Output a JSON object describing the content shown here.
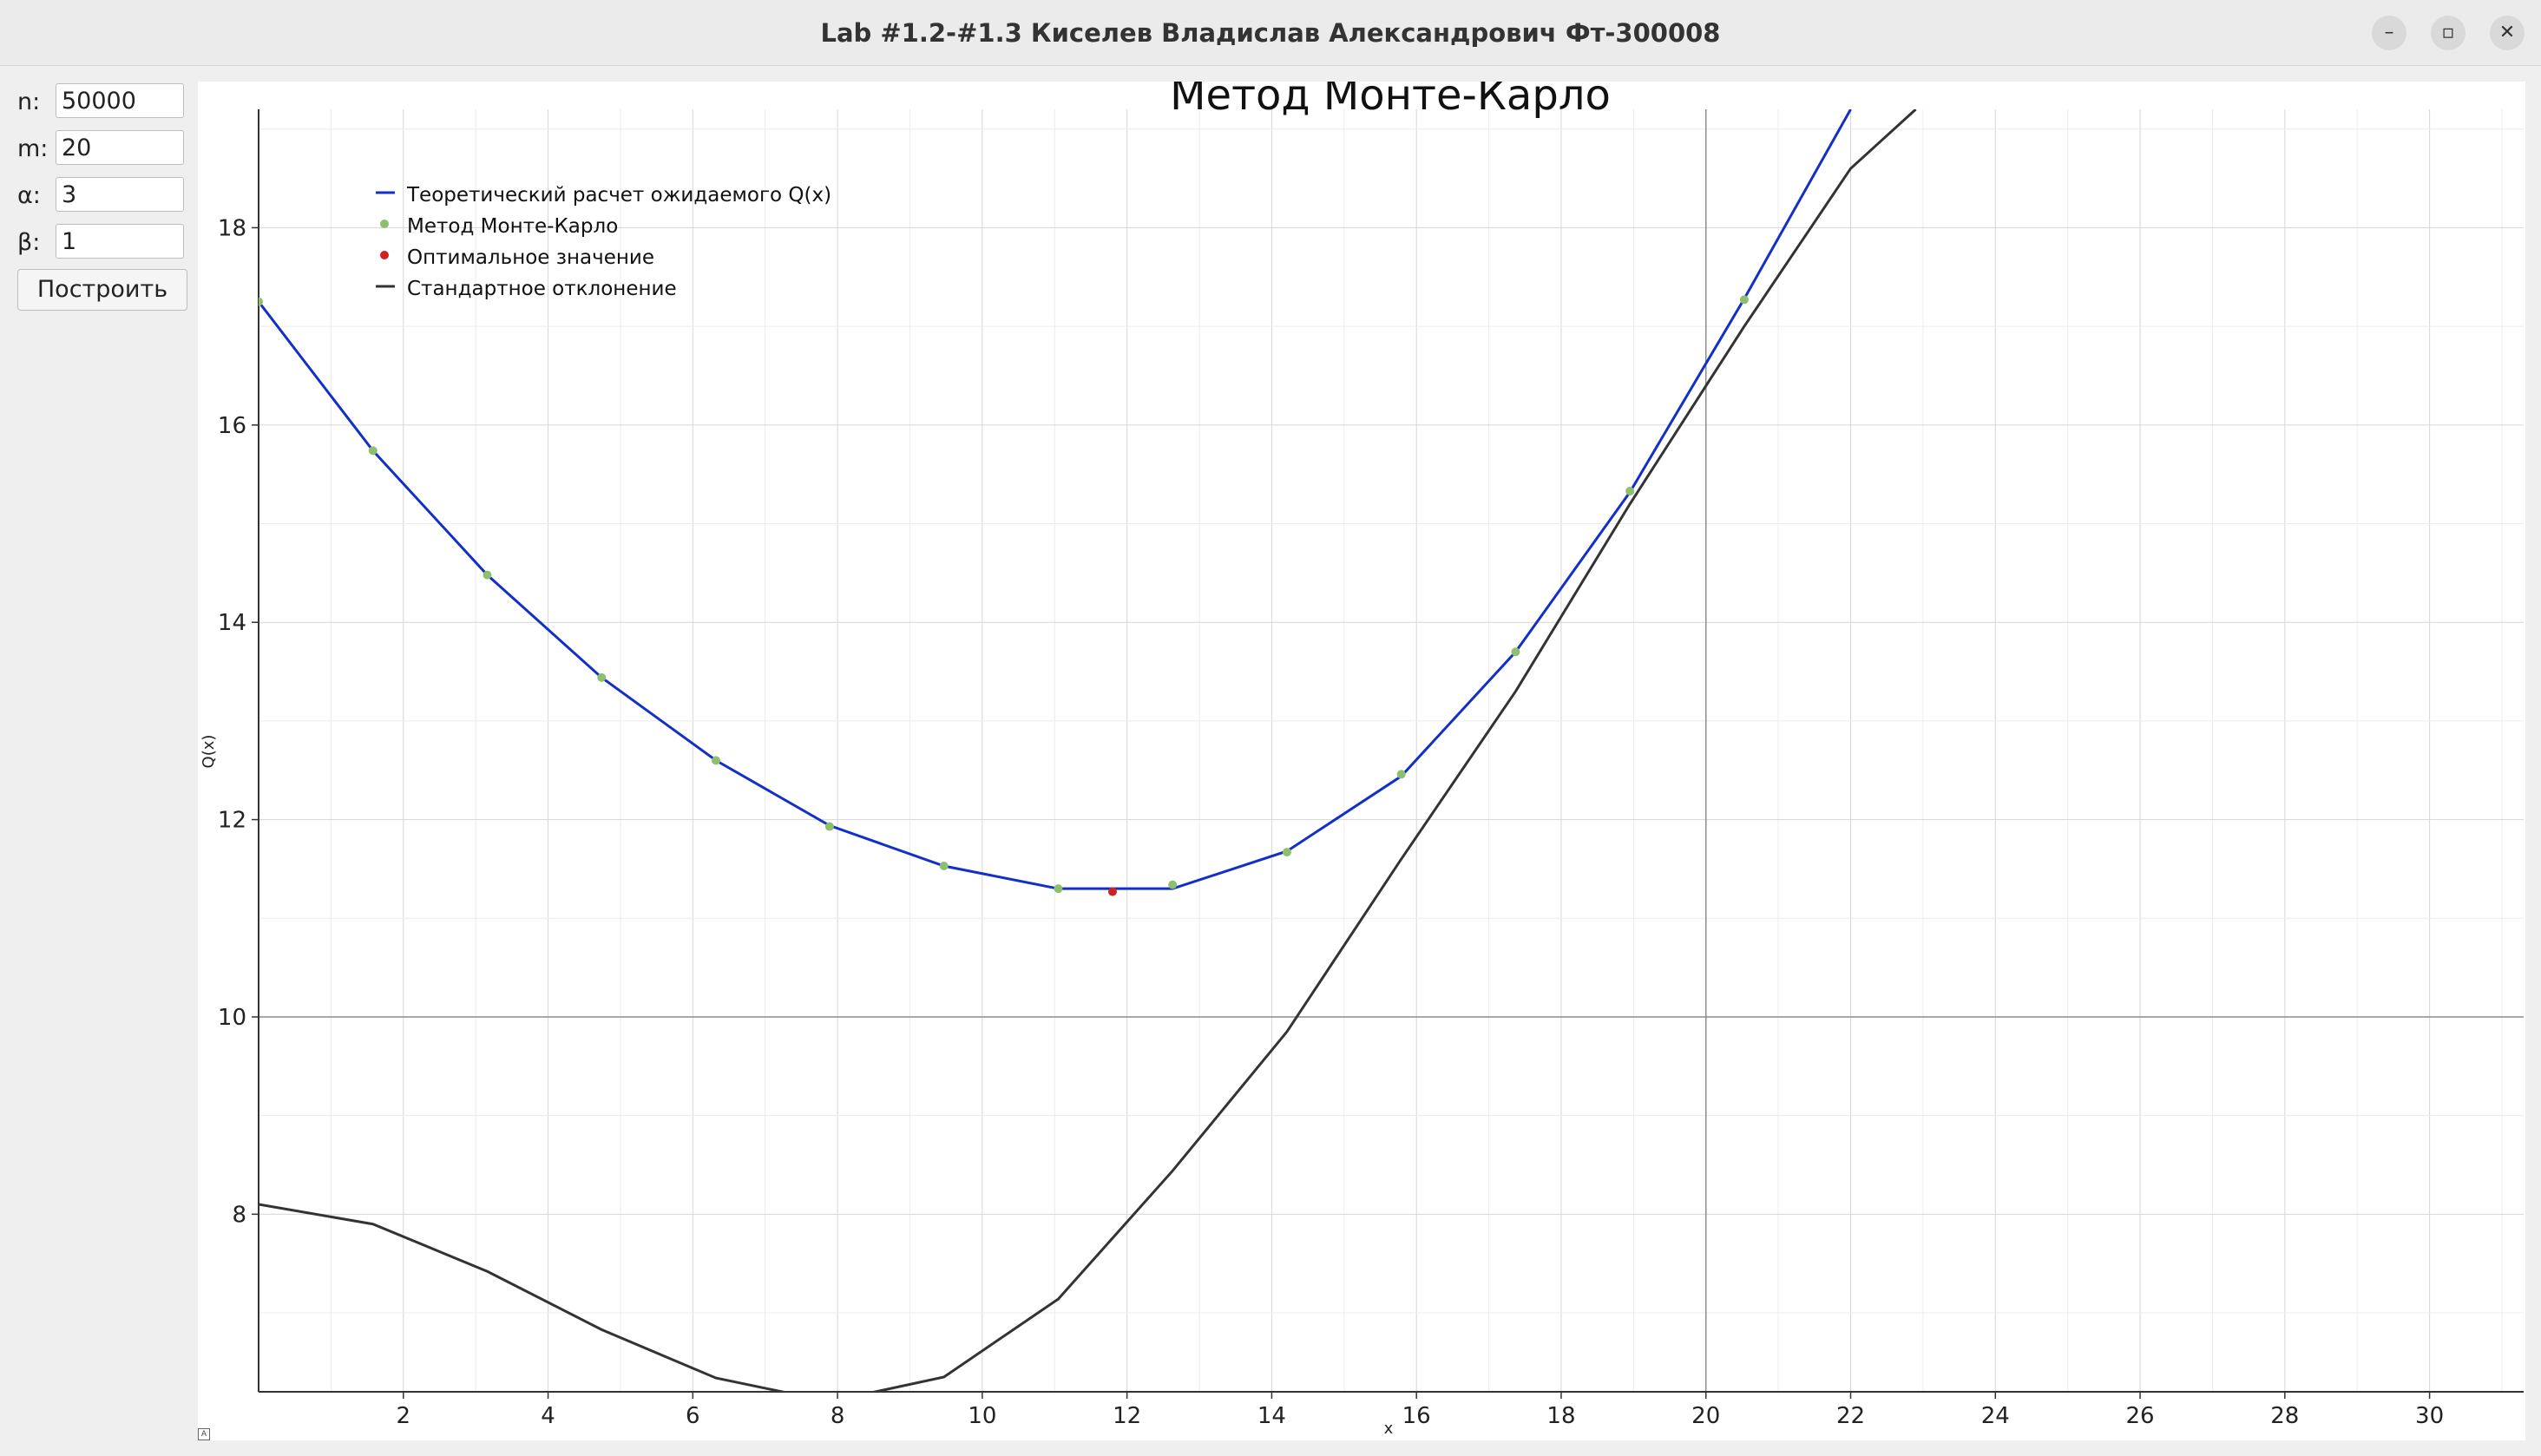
{
  "window": {
    "title": "Lab #1.2-#1.3 Киселев Владислав Александрович Фт-300008",
    "buttons": {
      "minimize": "–",
      "maximize": "▫",
      "close": "✕"
    }
  },
  "params": [
    {
      "label": "n:",
      "value": "50000"
    },
    {
      "label": "m:",
      "value": "20"
    },
    {
      "label": "α:",
      "value": "3"
    },
    {
      "label": "β:",
      "value": "1"
    }
  ],
  "build_button": "Построить",
  "colors": {
    "theory": "#1230c8",
    "monte_carlo": "#8ebf6e",
    "optimal": "#d02020",
    "std": "#333333"
  },
  "chart_data": {
    "type": "line",
    "title": "Метод Монте-Карло",
    "xlabel": "x",
    "ylabel": "Q(x)",
    "xlim": [
      0,
      31.3
    ],
    "ylim": [
      6.2,
      19.2
    ],
    "x_ticks": [
      "2",
      "4",
      "6",
      "8",
      "10",
      "12",
      "14",
      "16",
      "18",
      "20",
      "22",
      "24",
      "26",
      "28",
      "30"
    ],
    "y_ticks": [
      "8",
      "10",
      "12",
      "14",
      "16",
      "18"
    ],
    "grid": true,
    "legend_position": "top-left",
    "legend": [
      "Теоретический расчет ожидаемого Q(x)",
      "Метод Монте-Карло",
      "Оптимальное значение",
      "Стандартное отклонение"
    ],
    "series": [
      {
        "name": "Теоретический расчет ожидаемого Q(x)",
        "type": "line",
        "x": [
          0,
          1.58,
          3.16,
          4.74,
          6.32,
          7.89,
          9.47,
          11.05,
          12.63,
          14.21,
          15.79,
          17.37,
          18.95,
          20.53,
          22.0
        ],
        "y": [
          17.25,
          15.74,
          14.48,
          13.44,
          12.6,
          11.94,
          11.53,
          11.3,
          11.3,
          11.68,
          12.44,
          13.7,
          15.32,
          17.28,
          19.2
        ]
      },
      {
        "name": "Метод Монте-Карло",
        "type": "scatter",
        "x": [
          0,
          1.58,
          3.16,
          4.74,
          6.32,
          7.89,
          9.47,
          11.05,
          12.63,
          14.21,
          15.79,
          17.37,
          18.95,
          20.53
        ],
        "y": [
          17.25,
          15.74,
          14.48,
          13.44,
          12.6,
          11.93,
          11.53,
          11.3,
          11.34,
          11.67,
          12.46,
          13.7,
          15.33,
          17.27
        ]
      },
      {
        "name": "Оптимальное значение",
        "type": "scatter",
        "x": [
          11.8
        ],
        "y": [
          11.27
        ]
      },
      {
        "name": "Стандартное отклонение",
        "type": "line",
        "x": [
          0,
          1.58,
          3.16,
          4.74,
          6.32,
          7.89,
          9.47,
          11.05,
          12.63,
          14.21,
          15.79,
          17.37,
          18.95,
          20.53,
          22.0,
          22.9
        ],
        "y": [
          8.1,
          7.9,
          7.42,
          6.83,
          6.34,
          6.1,
          6.35,
          7.14,
          8.44,
          9.85,
          11.6,
          13.3,
          15.2,
          17.0,
          18.6,
          19.2
        ]
      }
    ]
  }
}
